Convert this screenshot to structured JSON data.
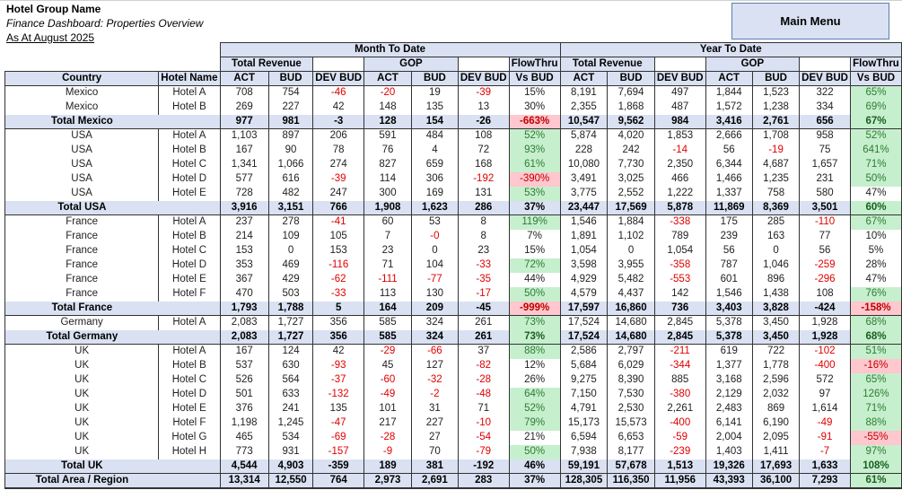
{
  "header": {
    "group_name": "Hotel Group Name",
    "subtitle": "Finance Dashboard: Properties Overview",
    "as_at": "As At August 2025"
  },
  "main_menu_label": "Main Menu",
  "sections": {
    "mtd": "Month To Date",
    "ytd": "Year To Date"
  },
  "groups": {
    "total_revenue": "Total Revenue",
    "gop": "GOP",
    "flowthru": "FlowThru"
  },
  "columns": {
    "country": "Country",
    "hotel": "Hotel Name",
    "act": "ACT",
    "bud": "BUD",
    "dev": "DEV BUD",
    "vs": "Vs BUD"
  },
  "colors": {
    "header_bg": "#d9e1f2",
    "negative": "#e00000",
    "good_bg": "#c6efce",
    "bad_bg": "#ffc7ce"
  },
  "rows": [
    {
      "country": "Mexico",
      "hotel": "Hotel A",
      "v": [
        "708",
        "754",
        "-46",
        "-20",
        "19",
        "-39",
        "15%",
        "8,191",
        "7,694",
        "497",
        "1,844",
        "1,523",
        "322",
        "65%"
      ],
      "ft": [
        "",
        "g"
      ]
    },
    {
      "country": "Mexico",
      "hotel": "Hotel B",
      "v": [
        "269",
        "227",
        "42",
        "148",
        "135",
        "13",
        "30%",
        "2,355",
        "1,868",
        "487",
        "1,572",
        "1,238",
        "334",
        "69%"
      ],
      "ft": [
        "",
        "g"
      ]
    },
    {
      "total": "Total Mexico",
      "v": [
        "977",
        "981",
        "-3",
        "128",
        "154",
        "-26",
        "-663%",
        "10,547",
        "9,562",
        "984",
        "3,416",
        "2,761",
        "656",
        "67%"
      ],
      "ft": [
        "r",
        "g"
      ]
    },
    {
      "country": "USA",
      "hotel": "Hotel A",
      "v": [
        "1,103",
        "897",
        "206",
        "591",
        "484",
        "108",
        "52%",
        "5,874",
        "4,020",
        "1,853",
        "2,666",
        "1,708",
        "958",
        "52%"
      ],
      "ft": [
        "g",
        "g"
      ]
    },
    {
      "country": "USA",
      "hotel": "Hotel B",
      "v": [
        "167",
        "90",
        "78",
        "76",
        "4",
        "72",
        "93%",
        "228",
        "242",
        "-14",
        "56",
        "-19",
        "75",
        "641%"
      ],
      "ft": [
        "g",
        "g"
      ]
    },
    {
      "country": "USA",
      "hotel": "Hotel C",
      "v": [
        "1,341",
        "1,066",
        "274",
        "827",
        "659",
        "168",
        "61%",
        "10,080",
        "7,730",
        "2,350",
        "6,344",
        "4,687",
        "1,657",
        "71%"
      ],
      "ft": [
        "g",
        "g"
      ]
    },
    {
      "country": "USA",
      "hotel": "Hotel D",
      "v": [
        "577",
        "616",
        "-39",
        "114",
        "306",
        "-192",
        "-390%",
        "3,491",
        "3,025",
        "466",
        "1,466",
        "1,235",
        "231",
        "50%"
      ],
      "ft": [
        "r",
        "g"
      ]
    },
    {
      "country": "USA",
      "hotel": "Hotel E",
      "v": [
        "728",
        "482",
        "247",
        "300",
        "169",
        "131",
        "53%",
        "3,775",
        "2,552",
        "1,222",
        "1,337",
        "758",
        "580",
        "47%"
      ],
      "ft": [
        "g",
        ""
      ]
    },
    {
      "total": "Total USA",
      "v": [
        "3,916",
        "3,151",
        "766",
        "1,908",
        "1,623",
        "286",
        "37%",
        "23,447",
        "17,569",
        "5,878",
        "11,869",
        "8,369",
        "3,501",
        "60%"
      ],
      "ft": [
        "",
        "g"
      ]
    },
    {
      "country": "France",
      "hotel": "Hotel A",
      "v": [
        "237",
        "278",
        "-41",
        "60",
        "53",
        "8",
        "119%",
        "1,546",
        "1,884",
        "-338",
        "175",
        "285",
        "-110",
        "67%"
      ],
      "ft": [
        "g",
        "g"
      ]
    },
    {
      "country": "France",
      "hotel": "Hotel B",
      "v": [
        "214",
        "109",
        "105",
        "7",
        "-0",
        "8",
        "7%",
        "1,891",
        "1,102",
        "789",
        "239",
        "163",
        "77",
        "10%"
      ],
      "ft": [
        "",
        ""
      ]
    },
    {
      "country": "France",
      "hotel": "Hotel C",
      "v": [
        "153",
        "0",
        "153",
        "23",
        "0",
        "23",
        "15%",
        "1,054",
        "0",
        "1,054",
        "56",
        "0",
        "56",
        "5%"
      ],
      "ft": [
        "",
        ""
      ]
    },
    {
      "country": "France",
      "hotel": "Hotel D",
      "v": [
        "353",
        "469",
        "-116",
        "71",
        "104",
        "-33",
        "72%",
        "3,598",
        "3,955",
        "-358",
        "787",
        "1,046",
        "-259",
        "28%"
      ],
      "ft": [
        "g",
        ""
      ]
    },
    {
      "country": "France",
      "hotel": "Hotel E",
      "v": [
        "367",
        "429",
        "-62",
        "-111",
        "-77",
        "-35",
        "44%",
        "4,929",
        "5,482",
        "-553",
        "601",
        "896",
        "-296",
        "47%"
      ],
      "ft": [
        "",
        ""
      ]
    },
    {
      "country": "France",
      "hotel": "Hotel F",
      "v": [
        "470",
        "503",
        "-33",
        "113",
        "130",
        "-17",
        "50%",
        "4,579",
        "4,437",
        "142",
        "1,546",
        "1,438",
        "108",
        "76%"
      ],
      "ft": [
        "g",
        "g"
      ]
    },
    {
      "total": "Total France",
      "v": [
        "1,793",
        "1,788",
        "5",
        "164",
        "209",
        "-45",
        "-999%",
        "17,597",
        "16,860",
        "736",
        "3,403",
        "3,828",
        "-424",
        "-158%"
      ],
      "ft": [
        "r",
        "r"
      ]
    },
    {
      "country": "Germany",
      "hotel": "Hotel A",
      "v": [
        "2,083",
        "1,727",
        "356",
        "585",
        "324",
        "261",
        "73%",
        "17,524",
        "14,680",
        "2,845",
        "5,378",
        "3,450",
        "1,928",
        "68%"
      ],
      "ft": [
        "g",
        "g"
      ]
    },
    {
      "total": "Total Germany",
      "v": [
        "2,083",
        "1,727",
        "356",
        "585",
        "324",
        "261",
        "73%",
        "17,524",
        "14,680",
        "2,845",
        "5,378",
        "3,450",
        "1,928",
        "68%"
      ],
      "ft": [
        "g",
        "g"
      ]
    },
    {
      "country": "UK",
      "hotel": "Hotel A",
      "v": [
        "167",
        "124",
        "42",
        "-29",
        "-66",
        "37",
        "88%",
        "2,586",
        "2,797",
        "-211",
        "619",
        "722",
        "-102",
        "51%"
      ],
      "ft": [
        "g",
        "g"
      ]
    },
    {
      "country": "UK",
      "hotel": "Hotel B",
      "v": [
        "537",
        "630",
        "-93",
        "45",
        "127",
        "-82",
        "12%",
        "5,684",
        "6,029",
        "-344",
        "1,377",
        "1,778",
        "-400",
        "-16%"
      ],
      "ft": [
        "",
        "r"
      ]
    },
    {
      "country": "UK",
      "hotel": "Hotel C",
      "v": [
        "526",
        "564",
        "-37",
        "-60",
        "-32",
        "-28",
        "26%",
        "9,275",
        "8,390",
        "885",
        "3,168",
        "2,596",
        "572",
        "65%"
      ],
      "ft": [
        "",
        "g"
      ]
    },
    {
      "country": "UK",
      "hotel": "Hotel D",
      "v": [
        "501",
        "633",
        "-132",
        "-49",
        "-2",
        "-48",
        "64%",
        "7,150",
        "7,530",
        "-380",
        "2,129",
        "2,032",
        "97",
        "126%"
      ],
      "ft": [
        "g",
        "g"
      ]
    },
    {
      "country": "UK",
      "hotel": "Hotel E",
      "v": [
        "376",
        "241",
        "135",
        "101",
        "31",
        "71",
        "52%",
        "4,791",
        "2,530",
        "2,261",
        "2,483",
        "869",
        "1,614",
        "71%"
      ],
      "ft": [
        "g",
        "g"
      ]
    },
    {
      "country": "UK",
      "hotel": "Hotel F",
      "v": [
        "1,198",
        "1,245",
        "-47",
        "217",
        "227",
        "-10",
        "79%",
        "15,173",
        "15,573",
        "-400",
        "6,141",
        "6,190",
        "-49",
        "88%"
      ],
      "ft": [
        "g",
        "g"
      ]
    },
    {
      "country": "UK",
      "hotel": "Hotel G",
      "v": [
        "465",
        "534",
        "-69",
        "-28",
        "27",
        "-54",
        "21%",
        "6,594",
        "6,653",
        "-59",
        "2,004",
        "2,095",
        "-91",
        "-55%"
      ],
      "ft": [
        "",
        "r"
      ]
    },
    {
      "country": "UK",
      "hotel": "Hotel H",
      "v": [
        "773",
        "931",
        "-157",
        "-9",
        "70",
        "-79",
        "50%",
        "7,938",
        "8,177",
        "-239",
        "1,403",
        "1,411",
        "-7",
        "97%"
      ],
      "ft": [
        "g",
        "g"
      ]
    },
    {
      "total": "Total UK",
      "v": [
        "4,544",
        "4,903",
        "-359",
        "189",
        "381",
        "-192",
        "46%",
        "59,191",
        "57,678",
        "1,513",
        "19,326",
        "17,693",
        "1,633",
        "108%"
      ],
      "ft": [
        "",
        "g"
      ]
    },
    {
      "total": "Total Area / Region",
      "grand": true,
      "v": [
        "13,314",
        "12,550",
        "764",
        "2,973",
        "2,691",
        "283",
        "37%",
        "128,305",
        "116,350",
        "11,956",
        "43,393",
        "36,100",
        "7,293",
        "61%"
      ],
      "ft": [
        "",
        "g"
      ]
    }
  ]
}
